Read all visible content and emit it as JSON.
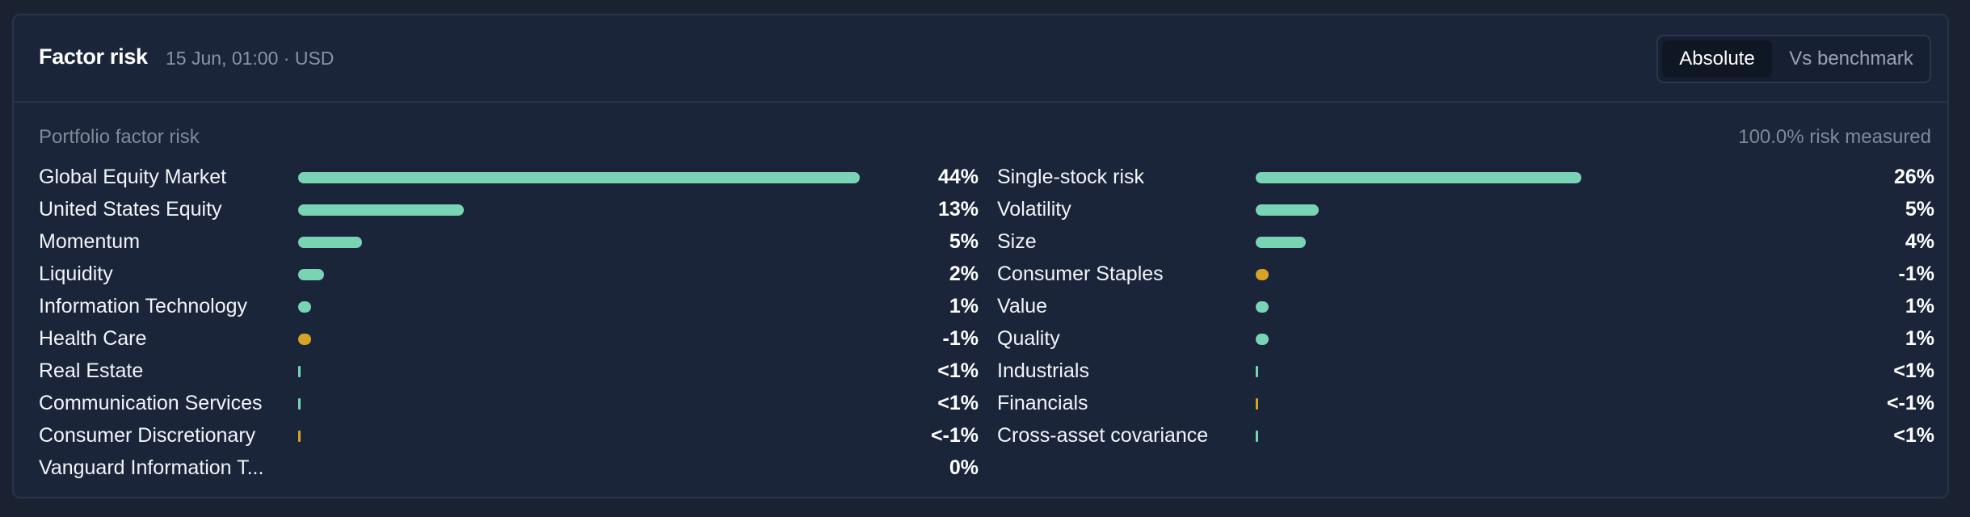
{
  "header": {
    "title": "Factor risk",
    "subtitle": "15 Jun, 01:00 · USD",
    "toggle": [
      {
        "label": "Absolute",
        "active": true
      },
      {
        "label": "Vs benchmark",
        "active": false
      }
    ]
  },
  "section": {
    "label": "Portfolio factor risk",
    "coverage": "100.0% risk measured"
  },
  "colors": {
    "positive": "#79d4b6",
    "negative": "#d6a324"
  },
  "left_factors": [
    {
      "name": "Global Equity Market",
      "value_label": "44%",
      "value": 44,
      "sign": "pos"
    },
    {
      "name": "United States Equity",
      "value_label": "13%",
      "value": 13,
      "sign": "pos"
    },
    {
      "name": "Momentum",
      "value_label": "5%",
      "value": 5,
      "sign": "pos"
    },
    {
      "name": "Liquidity",
      "value_label": "2%",
      "value": 2,
      "sign": "pos"
    },
    {
      "name": "Information Technology",
      "value_label": "1%",
      "value": 1,
      "sign": "pos"
    },
    {
      "name": "Health Care",
      "value_label": "-1%",
      "value": -1,
      "sign": "neg"
    },
    {
      "name": "Real Estate",
      "value_label": "<1%",
      "value": 0.2,
      "sign": "pos"
    },
    {
      "name": "Communication Services",
      "value_label": "<1%",
      "value": 0.1,
      "sign": "pos"
    },
    {
      "name": "Consumer Discretionary",
      "value_label": "<-1%",
      "value": -0.1,
      "sign": "neg"
    },
    {
      "name": "Vanguard Information T...",
      "value_label": "0%",
      "value": 0,
      "sign": "pos"
    }
  ],
  "right_factors": [
    {
      "name": "Single-stock risk",
      "value_label": "26%",
      "value": 26,
      "sign": "pos"
    },
    {
      "name": "Volatility",
      "value_label": "5%",
      "value": 5,
      "sign": "pos"
    },
    {
      "name": "Size",
      "value_label": "4%",
      "value": 4,
      "sign": "pos"
    },
    {
      "name": "Consumer Staples",
      "value_label": "-1%",
      "value": -1,
      "sign": "neg"
    },
    {
      "name": "Value",
      "value_label": "1%",
      "value": 1,
      "sign": "pos"
    },
    {
      "name": "Quality",
      "value_label": "1%",
      "value": 1,
      "sign": "pos"
    },
    {
      "name": "Industrials",
      "value_label": "<1%",
      "value": 0.1,
      "sign": "pos"
    },
    {
      "name": "Financials",
      "value_label": "<-1%",
      "value": -0.1,
      "sign": "neg"
    },
    {
      "name": "Cross-asset covariance",
      "value_label": "<1%",
      "value": 0.1,
      "sign": "pos"
    }
  ]
}
